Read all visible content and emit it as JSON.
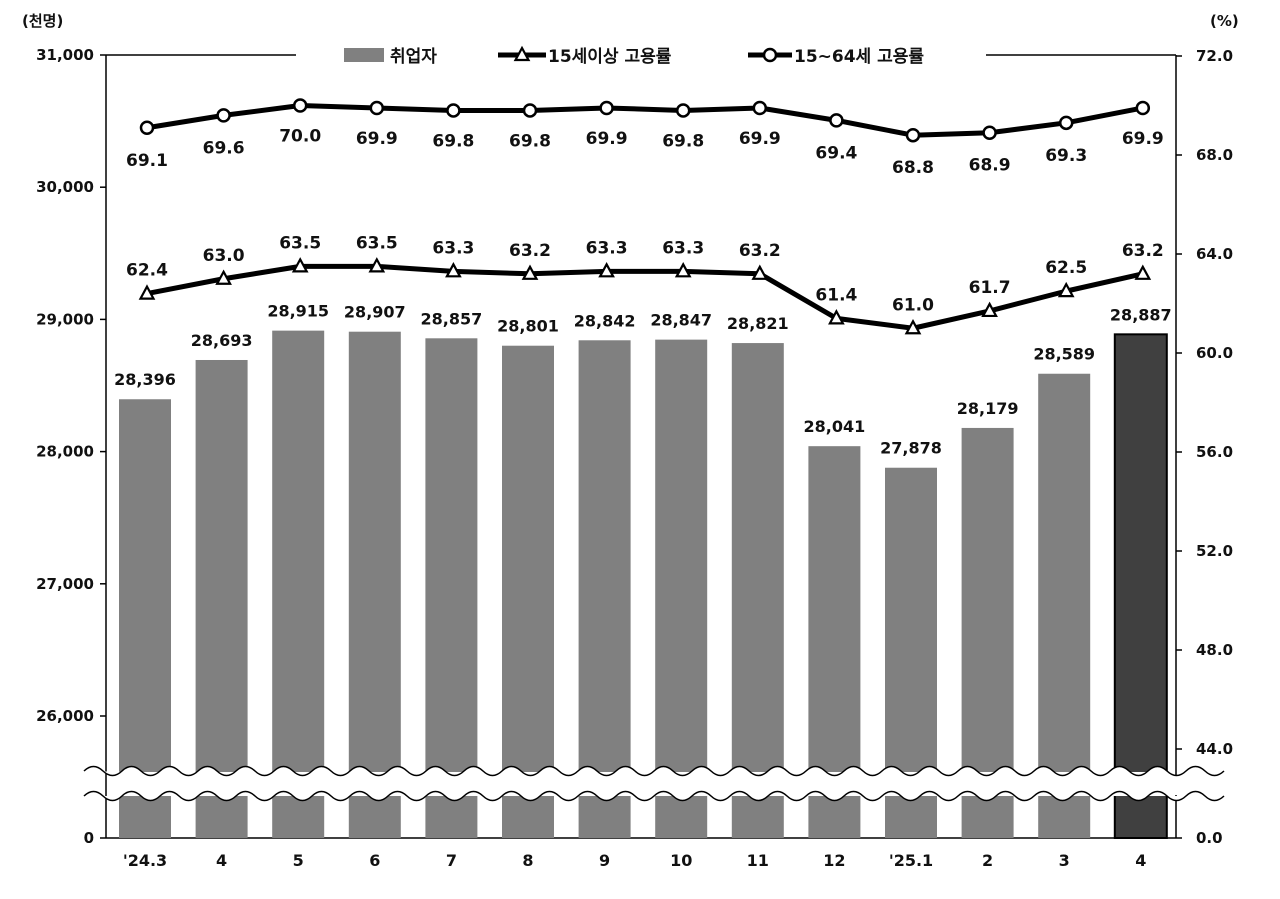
{
  "chart_data": {
    "type": "bar",
    "left_unit": "(천명)",
    "right_unit": "(%)",
    "categories": [
      "'24.3",
      "4",
      "5",
      "6",
      "7",
      "8",
      "9",
      "10",
      "11",
      "12",
      "'25.1",
      "2",
      "3",
      "4"
    ],
    "left_axis": {
      "ticks": [
        0,
        26000,
        27000,
        28000,
        29000,
        30000,
        31000
      ],
      "tick_labels": [
        "0",
        "26,000",
        "27,000",
        "28,000",
        "29,000",
        "30,000",
        "31,000"
      ],
      "range": [
        25500,
        31000
      ],
      "broken": true
    },
    "right_axis": {
      "ticks": [
        0.0,
        44.0,
        48.0,
        52.0,
        56.0,
        60.0,
        64.0,
        68.0,
        72.0
      ],
      "tick_labels": [
        "0.0",
        "44.0",
        "48.0",
        "52.0",
        "56.0",
        "60.0",
        "64.0",
        "68.0",
        "72.0"
      ],
      "range": [
        43.0,
        72.0
      ],
      "broken": true
    },
    "series": [
      {
        "name": "취업자",
        "type": "bar",
        "axis": "left",
        "color": "#808080",
        "highlight_color": "#404040",
        "highlight_index": 13,
        "values": [
          28396,
          28693,
          28915,
          28907,
          28857,
          28801,
          28842,
          28847,
          28821,
          28041,
          27878,
          28179,
          28589,
          28887
        ],
        "labels": [
          "28,396",
          "28,693",
          "28,915",
          "28,907",
          "28,857",
          "28,801",
          "28,842",
          "28,847",
          "28,821",
          "28,041",
          "27,878",
          "28,179",
          "28,589",
          "28,887"
        ]
      },
      {
        "name": "15세이상 고용률",
        "type": "line",
        "marker": "triangle",
        "axis": "right",
        "values": [
          62.4,
          63.0,
          63.5,
          63.5,
          63.3,
          63.2,
          63.3,
          63.3,
          63.2,
          61.4,
          61.0,
          61.7,
          62.5,
          63.2
        ],
        "labels": [
          "62.4",
          "63.0",
          "63.5",
          "63.5",
          "63.3",
          "63.2",
          "63.3",
          "63.3",
          "63.2",
          "61.4",
          "61.0",
          "61.7",
          "62.5",
          "63.2"
        ]
      },
      {
        "name": "15~64세 고용률",
        "type": "line",
        "marker": "circle",
        "axis": "right",
        "values": [
          69.1,
          69.6,
          70.0,
          69.9,
          69.8,
          69.8,
          69.9,
          69.8,
          69.9,
          69.4,
          68.8,
          68.9,
          69.3,
          69.9
        ],
        "labels": [
          "69.1",
          "69.6",
          "70.0",
          "69.9",
          "69.8",
          "69.8",
          "69.9",
          "69.8",
          "69.9",
          "69.4",
          "68.8",
          "68.9",
          "69.3",
          "69.9"
        ]
      }
    ],
    "legend_position": "top",
    "grid": false
  }
}
